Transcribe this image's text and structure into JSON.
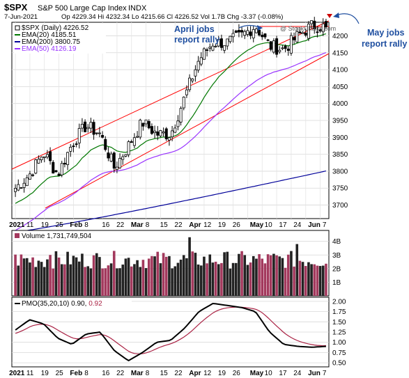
{
  "header": {
    "symbol": "$SPX",
    "name": "S&P 500 Large Cap Index",
    "exchange": "INDX",
    "date": "7-Jun-2021",
    "quote": "Op 4229.34  Hi 4232.34  Lo 4215.66  Cl 4226.52  Vol 1.7B  Chg -3.37 (-0.08%)",
    "watermark": "@ StockCharts.com"
  },
  "legend": {
    "price": "$SPX (Daily) 4226.52",
    "ema20": "EMA(20) 4185.51",
    "ema200": "EMA(200) 3800.75",
    "ema50": "EMA(50) 4126.19",
    "volume": "Volume 1,731,749,504",
    "pmo_label": "PMO(35,20,10)",
    "pmo_value": "0.90,",
    "pmo_signal": "0.92"
  },
  "annotations": {
    "april_line1": "April jobs",
    "april_line2": "report rally",
    "may_line1": "May jobs",
    "may_line2": "report rally"
  },
  "colors": {
    "candle": "#000000",
    "ema20": "#007700",
    "ema50": "#9933ff",
    "ema200": "#000099",
    "channel": "#ff0000",
    "vol_up": "#222222",
    "vol_down": "#a3395d",
    "pmo": "#000000",
    "pmo_signal": "#aa2244",
    "annotation": "#1f4fa0"
  },
  "chart_data": [
    {
      "type": "candlestick",
      "title": "$SPX S&P 500 Large Cap Index INDX",
      "x": [
        "2021-01-04",
        "2021-01-11",
        "2021-01-19",
        "2021-01-25",
        "2021-02-01",
        "2021-02-08",
        "2021-02-16",
        "2021-02-22",
        "2021-03-01",
        "2021-03-08",
        "2021-03-15",
        "2021-03-22",
        "2021-03-29",
        "2021-04-05",
        "2021-04-12",
        "2021-04-19",
        "2021-04-26",
        "2021-05-03",
        "2021-05-10",
        "2021-05-17",
        "2021-05-24",
        "2021-06-01",
        "2021-06-07"
      ],
      "x_tick_labels": [
        "2021",
        "11",
        "19",
        "25",
        "Feb",
        "8",
        "16",
        "22",
        "Mar",
        "8",
        "15",
        "22",
        "Apr",
        "12",
        "19",
        "26",
        "May",
        "10",
        "17",
        "24",
        "Jun",
        "7"
      ],
      "y_ticks": [
        3700,
        3750,
        3800,
        3850,
        3900,
        3950,
        4000,
        4050,
        4100,
        4150,
        4200
      ],
      "ylim": [
        3660,
        4240
      ],
      "close_approx": [
        3750,
        3790,
        3855,
        3790,
        3880,
        3935,
        3910,
        3810,
        3875,
        3945,
        3910,
        3910,
        4020,
        4130,
        4180,
        4180,
        4200,
        4230,
        4170,
        4160,
        4200,
        4230,
        4226.52
      ],
      "ema20_last": 4185.51,
      "ema50_last": 4126.19,
      "ema200_last": 3800.75
    },
    {
      "type": "bar",
      "title": "Volume",
      "y_tick_labels": [
        "1B",
        "2B",
        "3B",
        "4B"
      ],
      "ylim": [
        0,
        4.8
      ]
    },
    {
      "type": "line",
      "title": "PMO(35,20,10)",
      "y_ticks": [
        0.5,
        0.75,
        1.0,
        1.25,
        1.5,
        1.75,
        2.0
      ],
      "ylim": [
        0.4,
        2.1
      ],
      "series": [
        {
          "name": "PMO",
          "last": 0.9
        },
        {
          "name": "Signal",
          "last": 0.92
        }
      ]
    }
  ]
}
